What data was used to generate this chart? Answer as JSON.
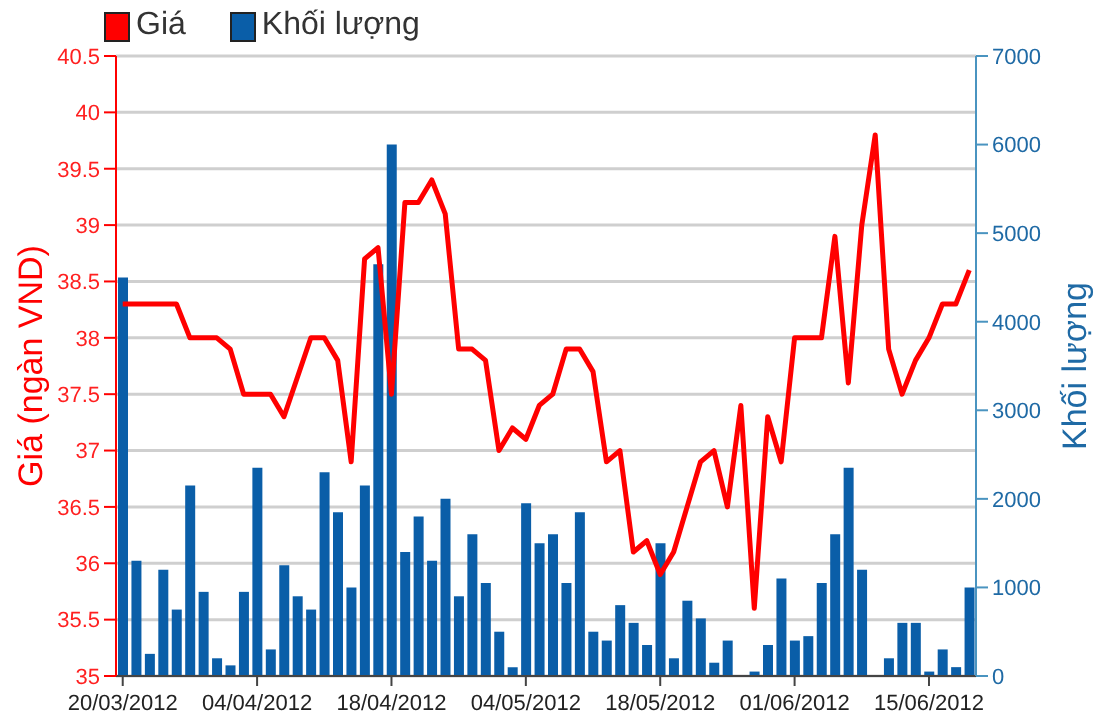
{
  "chart_data": {
    "type": "line",
    "categories": [
      "20/03/2012",
      null,
      null,
      null,
      null,
      null,
      null,
      null,
      null,
      null,
      "04/04/2012",
      null,
      null,
      null,
      null,
      null,
      null,
      null,
      null,
      null,
      "18/04/2012",
      null,
      null,
      null,
      null,
      null,
      null,
      null,
      null,
      null,
      "04/05/2012",
      null,
      null,
      null,
      null,
      null,
      null,
      null,
      null,
      null,
      "18/05/2012",
      null,
      null,
      null,
      null,
      null,
      null,
      null,
      null,
      null,
      "01/06/2012",
      null,
      null,
      null,
      null,
      null,
      null,
      null,
      null,
      null,
      "15/06/2012",
      null,
      null,
      null
    ],
    "series": [
      {
        "name": "Giá",
        "color": "#ff0000",
        "values": [
          38.3,
          38.3,
          38.3,
          38.3,
          38.3,
          38.0,
          38.0,
          38.0,
          37.9,
          37.5,
          37.5,
          37.5,
          37.3,
          37.65,
          38.0,
          38.0,
          37.8,
          36.9,
          38.7,
          38.8,
          37.5,
          39.2,
          39.2,
          39.4,
          39.1,
          37.9,
          37.9,
          37.8,
          37.0,
          37.2,
          37.1,
          37.4,
          37.5,
          37.9,
          37.9,
          37.7,
          36.9,
          37.0,
          36.1,
          36.2,
          35.9,
          36.1,
          36.5,
          36.9,
          37.0,
          36.5,
          37.4,
          35.6,
          37.3,
          36.9,
          38.0,
          38.0,
          38.0,
          38.9,
          37.6,
          39.0,
          39.8,
          37.9,
          37.5,
          37.8,
          38.0,
          38.3,
          38.3,
          38.6
        ]
      },
      {
        "name": "Khối lượng",
        "type": "bar",
        "axis": "y2",
        "color": "#0a5ea8",
        "values": [
          4500,
          1300,
          250,
          1200,
          750,
          2150,
          950,
          200,
          120,
          950,
          2350,
          300,
          1250,
          900,
          750,
          2300,
          1850,
          1000,
          2150,
          4650,
          6000,
          1400,
          1800,
          1300,
          2000,
          900,
          1600,
          1050,
          500,
          100,
          1950,
          1500,
          1600,
          1050,
          1850,
          500,
          400,
          800,
          600,
          350,
          1500,
          200,
          850,
          650,
          150,
          400,
          0,
          50,
          350,
          1100,
          400,
          450,
          1050,
          1600,
          2350,
          1200,
          0,
          200,
          600,
          600,
          50,
          300,
          100,
          1000
        ]
      }
    ],
    "ylabel": "Giá (ngàn VND)",
    "y2label": "Khối lượng",
    "ylim": [
      35,
      40.5
    ],
    "yticks": [
      35,
      35.5,
      36,
      36.5,
      37,
      37.5,
      38,
      38.5,
      39,
      39.5,
      40,
      40.5
    ],
    "y2lim": [
      0,
      7000
    ],
    "y2ticks": [
      0,
      1000,
      2000,
      3000,
      4000,
      5000,
      6000,
      7000
    ],
    "grid": "y",
    "legend": "top left",
    "marker": "none"
  }
}
